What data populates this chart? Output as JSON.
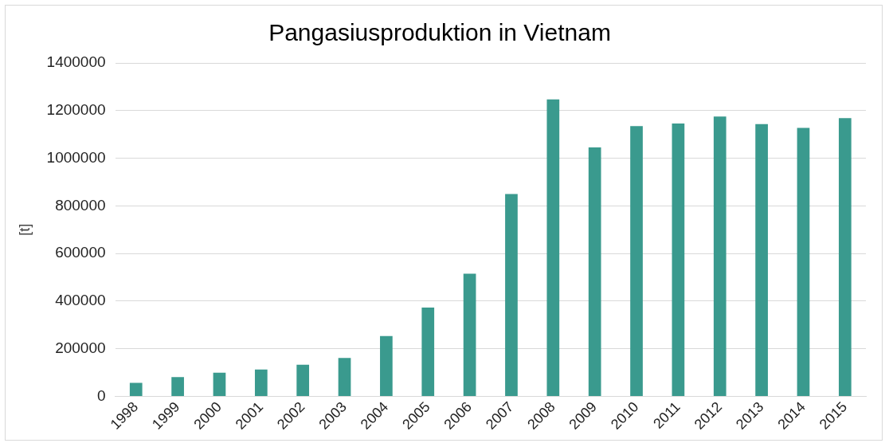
{
  "chart_data": {
    "type": "bar",
    "title": "Pangasiusproduktion in Vietnam",
    "ylabel": "[t]",
    "categories": [
      "1998",
      "1999",
      "2000",
      "2001",
      "2002",
      "2003",
      "2004",
      "2005",
      "2006",
      "2007",
      "2008",
      "2009",
      "2010",
      "2011",
      "2012",
      "2013",
      "2014",
      "2015"
    ],
    "values": [
      57000,
      81000,
      99000,
      113000,
      133000,
      161000,
      253000,
      373000,
      515000,
      850000,
      1247000,
      1045000,
      1135000,
      1146000,
      1175000,
      1143000,
      1127000,
      1168000
    ],
    "color": "#3a9a8e",
    "ylim": [
      0,
      1400000
    ],
    "yticks": [
      0,
      200000,
      400000,
      600000,
      800000,
      1000000,
      1200000,
      1400000
    ],
    "grid": "y",
    "legend": false
  }
}
